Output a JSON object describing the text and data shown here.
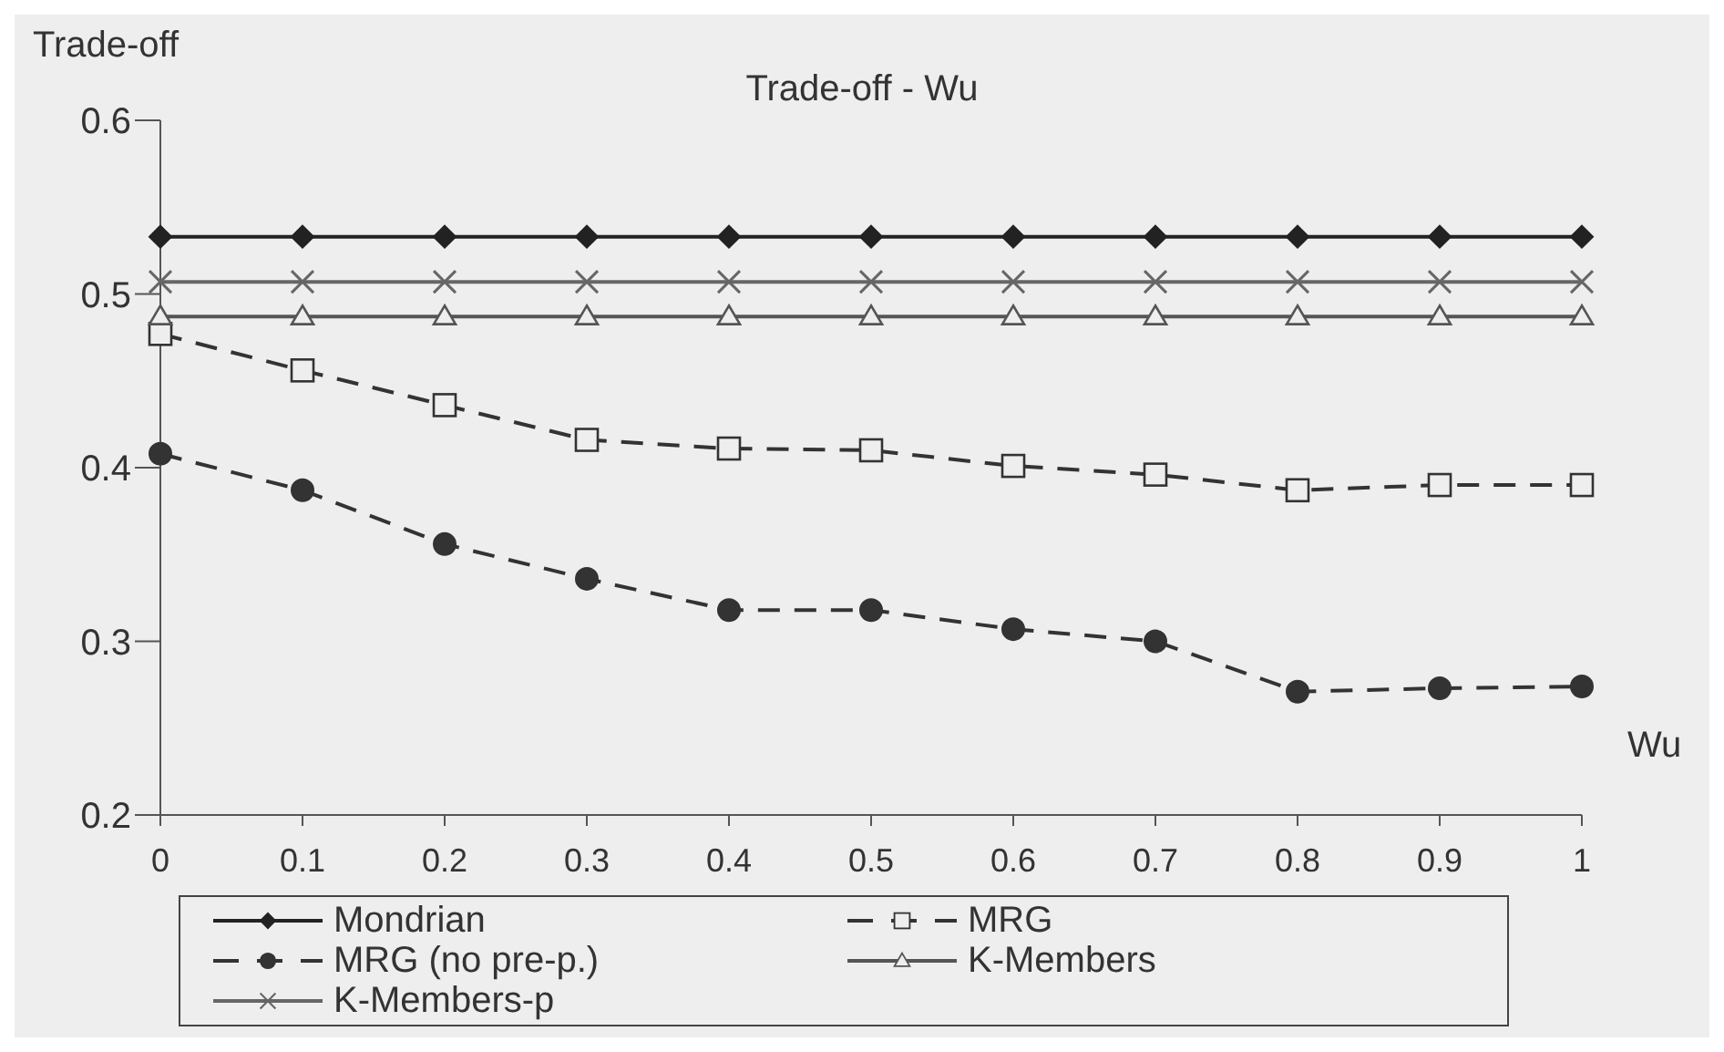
{
  "chart_data": {
    "type": "line",
    "title": "Trade-off - Wu",
    "ylabel": "Trade-off",
    "xlabel": "Wu",
    "categories": [
      "0",
      "0.1",
      "0.2",
      "0.3",
      "0.4",
      "0.5",
      "0.6",
      "0.7",
      "0.8",
      "0.9",
      "1"
    ],
    "series": [
      {
        "name": "Mondrian",
        "color": "#222222",
        "marker": "diamond",
        "line_style": "solid",
        "values": [
          0.533,
          0.533,
          0.533,
          0.533,
          0.533,
          0.533,
          0.533,
          0.533,
          0.533,
          0.533,
          0.533
        ]
      },
      {
        "name": "MRG",
        "color": "#333333",
        "marker": "square",
        "line_style": "dashed",
        "values": [
          0.477,
          0.456,
          0.436,
          0.416,
          0.411,
          0.41,
          0.401,
          0.396,
          0.387,
          0.39,
          0.39
        ]
      },
      {
        "name": "MRG (no pre-p.)",
        "color": "#333333",
        "marker": "circle",
        "line_style": "dashed",
        "values": [
          0.408,
          0.387,
          0.356,
          0.336,
          0.318,
          0.318,
          0.307,
          0.3,
          0.271,
          0.273,
          0.274
        ]
      },
      {
        "name": "K-Members",
        "color": "#555555",
        "marker": "triangle",
        "line_style": "solid",
        "values": [
          0.487,
          0.487,
          0.487,
          0.487,
          0.487,
          0.487,
          0.487,
          0.487,
          0.487,
          0.487,
          0.487
        ]
      },
      {
        "name": "K-Members-p",
        "color": "#666666",
        "marker": "cross",
        "line_style": "solid",
        "values": [
          0.507,
          0.507,
          0.507,
          0.507,
          0.507,
          0.507,
          0.507,
          0.507,
          0.507,
          0.507,
          0.507
        ]
      }
    ],
    "ylim": [
      0.2,
      0.6
    ],
    "yticks": [
      0.2,
      0.3,
      0.4,
      0.5,
      0.6
    ],
    "grid": false,
    "legend": "bottom"
  }
}
